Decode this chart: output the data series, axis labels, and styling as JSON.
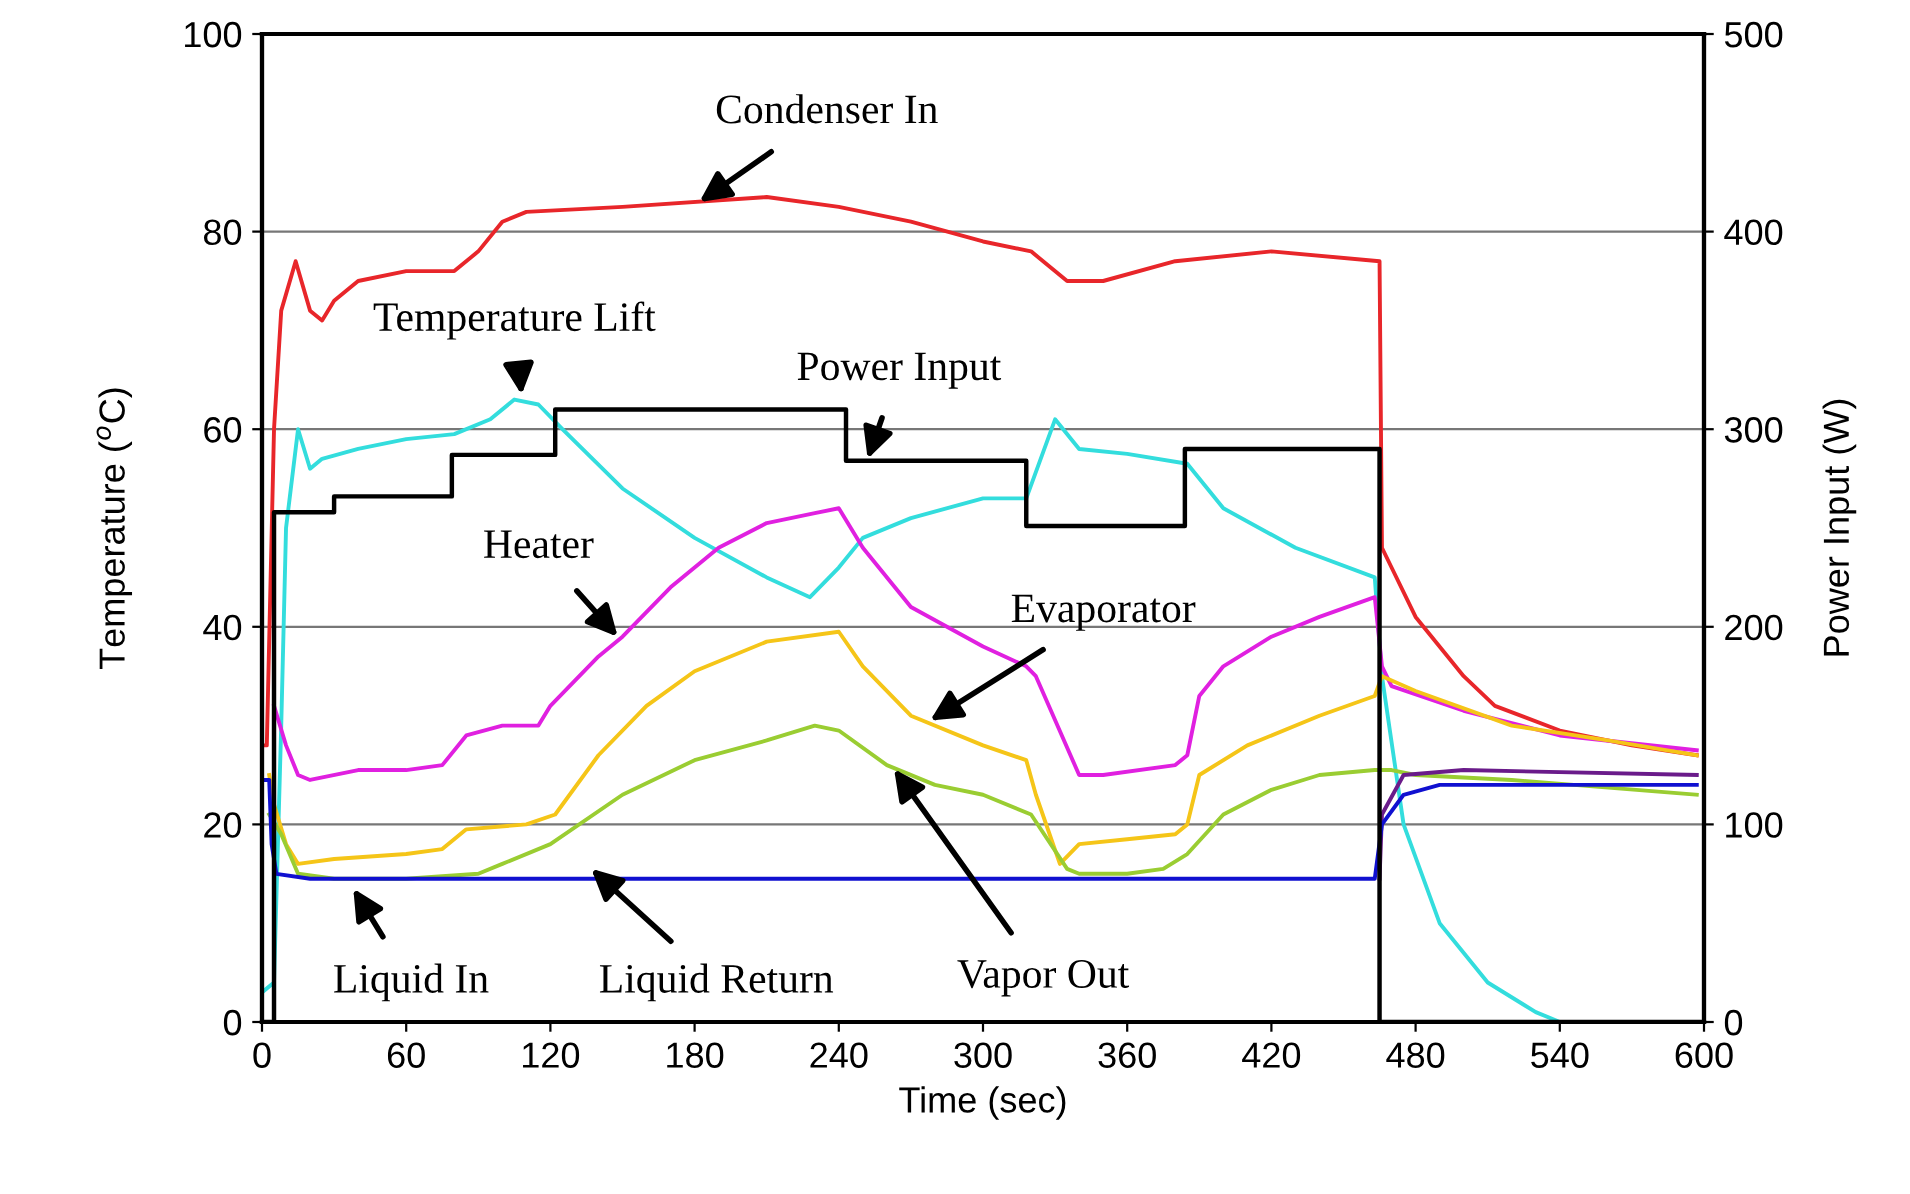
{
  "chart_data": {
    "type": "line",
    "xlabel": "Time (sec)",
    "ylabel": "Temperature ($^{o}$C)",
    "y2label": "Power Input (W)",
    "xlim": [
      0,
      600
    ],
    "xticks": [
      0,
      60,
      120,
      180,
      240,
      300,
      360,
      420,
      480,
      540,
      600
    ],
    "ylim": [
      0,
      100
    ],
    "yticks": [
      0,
      20,
      40,
      60,
      80,
      100
    ],
    "y2lim": [
      0,
      500
    ],
    "y2ticks": [
      0,
      100,
      200,
      300,
      400,
      500
    ],
    "grid": "y",
    "legend": false,
    "marker": "none",
    "line_style": "solid",
    "series": [
      {
        "color": "#e8262a",
        "x": [
          0,
          2,
          5,
          8,
          14,
          20,
          25,
          30,
          40,
          60,
          80,
          90,
          100,
          110,
          150,
          210,
          240,
          270,
          300,
          320,
          335,
          350,
          380,
          420,
          465,
          466,
          470,
          480,
          500,
          513,
          540,
          570,
          597
        ],
        "values": [
          28,
          28,
          60,
          72,
          77,
          72,
          71,
          73,
          75,
          76,
          76,
          78,
          81,
          82,
          82.5,
          83.5,
          82.5,
          81,
          79,
          78,
          75,
          75,
          77,
          78,
          77,
          48,
          46,
          41,
          35,
          32,
          29.5,
          28,
          27
        ]
      },
      {
        "color": "#33dddd",
        "x": [
          0,
          5,
          8,
          10,
          15,
          20,
          25,
          40,
          60,
          80,
          95,
          105,
          115,
          125,
          150,
          180,
          210,
          228,
          240,
          250,
          270,
          300,
          318,
          330,
          340,
          360,
          385,
          400,
          430,
          463,
          466,
          475,
          490,
          510,
          530,
          540,
          600
        ],
        "values": [
          3,
          4,
          30,
          50,
          60,
          56,
          57,
          58,
          59,
          59.5,
          61,
          63,
          62.5,
          60,
          54,
          49,
          45,
          43,
          46,
          49,
          51,
          53,
          53,
          61,
          58,
          57.5,
          56.5,
          52,
          48,
          45,
          35,
          20,
          10,
          4,
          1,
          0,
          0
        ]
      },
      {
        "color": "#e020e0",
        "x": [
          5,
          10,
          15,
          20,
          40,
          60,
          75,
          85,
          100,
          115,
          120,
          140,
          150,
          170,
          190,
          210,
          230,
          240,
          250,
          270,
          300,
          318,
          322,
          340,
          350,
          380,
          385,
          390,
          400,
          420,
          440,
          463,
          466,
          470,
          500,
          540,
          597
        ],
        "values": [
          32,
          28,
          25,
          24.5,
          25.5,
          25.5,
          26,
          29,
          30,
          30,
          32,
          37,
          39,
          44,
          48,
          50.5,
          51.5,
          52,
          48,
          42,
          38,
          36,
          35,
          25,
          25,
          26,
          27,
          33,
          36,
          39,
          41,
          43,
          36,
          34,
          31.5,
          29,
          27.5
        ]
      },
      {
        "color": "#f5c518",
        "x": [
          3,
          5,
          10,
          15,
          30,
          60,
          75,
          85,
          110,
          122,
          140,
          160,
          180,
          210,
          240,
          250,
          270,
          300,
          318,
          322,
          332,
          340,
          360,
          380,
          385,
          390,
          410,
          440,
          463,
          466,
          480,
          520,
          560,
          597
        ],
        "values": [
          25,
          22,
          18,
          16,
          16.5,
          17,
          17.5,
          19.5,
          20,
          21,
          27,
          32,
          35.5,
          38.5,
          39.5,
          36,
          31,
          28,
          26.5,
          23,
          16,
          18,
          18.5,
          19,
          20,
          25,
          28,
          31,
          33,
          35,
          33.5,
          30,
          28.5,
          27
        ]
      },
      {
        "color": "#9acd32",
        "x": [
          3,
          8,
          15,
          30,
          60,
          90,
          100,
          120,
          150,
          180,
          210,
          230,
          240,
          260,
          280,
          300,
          320,
          335,
          340,
          360,
          375,
          385,
          400,
          420,
          440,
          463,
          470,
          480,
          520,
          597
        ],
        "values": [
          21,
          19,
          15,
          14.5,
          14.5,
          15,
          16,
          18,
          23,
          26.5,
          28.5,
          30,
          29.5,
          26,
          24,
          23,
          21,
          15.5,
          15,
          15,
          15.5,
          17,
          21,
          23.5,
          25,
          25.5,
          25.5,
          25,
          24.5,
          23
        ]
      },
      {
        "color": "#6a1b8a",
        "x": [
          465,
          466,
          475,
          500,
          597
        ],
        "values": [
          14.5,
          21,
          25,
          25.5,
          25
        ]
      },
      {
        "color": "#1010d0",
        "x": [
          0,
          3,
          4,
          6,
          20,
          100,
          200,
          300,
          400,
          463,
          466,
          475,
          490,
          597
        ],
        "values": [
          24.5,
          24.5,
          18,
          15,
          14.5,
          14.5,
          14.5,
          14.5,
          14.5,
          14.5,
          20,
          23,
          24,
          24
        ]
      },
      {
        "type": "step",
        "axis": "y2",
        "color": "#000000",
        "x": [
          0,
          5,
          30,
          79,
          122,
          243,
          318,
          384,
          465,
          600
        ],
        "values": [
          0,
          258,
          266,
          287,
          310,
          284,
          251,
          290,
          0,
          0
        ]
      }
    ],
    "annotations": [
      {
        "text": "Condenser In",
        "x": 182,
        "y": 83
      },
      {
        "text": "Temperature Lift",
        "x": 108,
        "y": 63.5
      },
      {
        "text": "Power Input",
        "x": 252,
        "y": 57
      },
      {
        "text": "Heater",
        "x": 148,
        "y": 39
      },
      {
        "text": "Evaporator",
        "x": 278,
        "y": 30.5
      },
      {
        "text": "Vapor Out",
        "x": 263,
        "y": 25.6
      },
      {
        "text": "Liquid In",
        "x": 38,
        "y": 13.5
      },
      {
        "text": "Liquid Return",
        "x": 137,
        "y": 15.5
      }
    ]
  }
}
